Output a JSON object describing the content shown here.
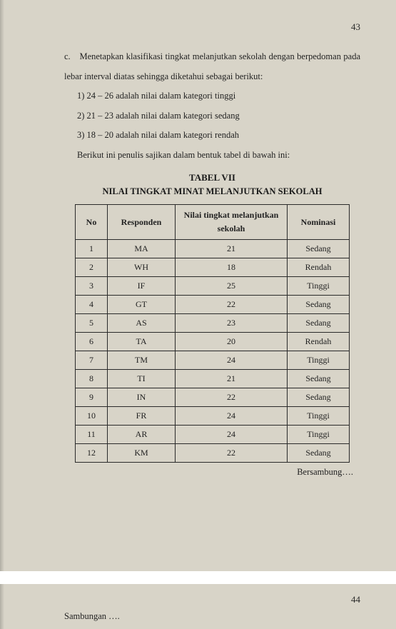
{
  "page_number_1": "43",
  "page_number_2": "44",
  "intro": {
    "label": "c.",
    "text": "Menetapkan klasifikasi tingkat melanjutkan sekolah dengan berpedoman pada lebar interval diatas sehingga diketahui sebagai berikut:"
  },
  "criteria": [
    "1)  24 – 26 adalah nilai dalam kategori tinggi",
    "2)  21 – 23 adalah nilai dalam kategori sedang",
    "3)  18 – 20 adalah nilai dalam kategori rendah"
  ],
  "lead_table": "Berikut ini penulis sajikan dalam bentuk tabel di bawah ini:",
  "table_title": "TABEL VII",
  "table_subtitle": "NILAI TINGKAT MINAT MELANJUTKAN SEKOLAH",
  "columns": {
    "no": "No",
    "responden": "Responden",
    "nilai": "Nilai tingkat melanjutkan sekolah",
    "nominasi": "Nominasi"
  },
  "rows": [
    {
      "no": "1",
      "resp": "MA",
      "nilai": "21",
      "nom": "Sedang"
    },
    {
      "no": "2",
      "resp": "WH",
      "nilai": "18",
      "nom": "Rendah"
    },
    {
      "no": "3",
      "resp": "IF",
      "nilai": "25",
      "nom": "Tinggi"
    },
    {
      "no": "4",
      "resp": "GT",
      "nilai": "22",
      "nom": "Sedang"
    },
    {
      "no": "5",
      "resp": "AS",
      "nilai": "23",
      "nom": "Sedang"
    },
    {
      "no": "6",
      "resp": "TA",
      "nilai": "20",
      "nom": "Rendah"
    },
    {
      "no": "7",
      "resp": "TM",
      "nilai": "24",
      "nom": "Tinggi"
    },
    {
      "no": "8",
      "resp": "TI",
      "nilai": "21",
      "nom": "Sedang"
    },
    {
      "no": "9",
      "resp": "IN",
      "nilai": "22",
      "nom": "Sedang"
    },
    {
      "no": "10",
      "resp": "FR",
      "nilai": "24",
      "nom": "Tinggi"
    },
    {
      "no": "11",
      "resp": "AR",
      "nilai": "24",
      "nom": "Tinggi"
    },
    {
      "no": "12",
      "resp": "KM",
      "nilai": "22",
      "nom": "Sedang"
    }
  ],
  "continue_label": "Bersambung….",
  "sambungan_label": "Sambungan …."
}
